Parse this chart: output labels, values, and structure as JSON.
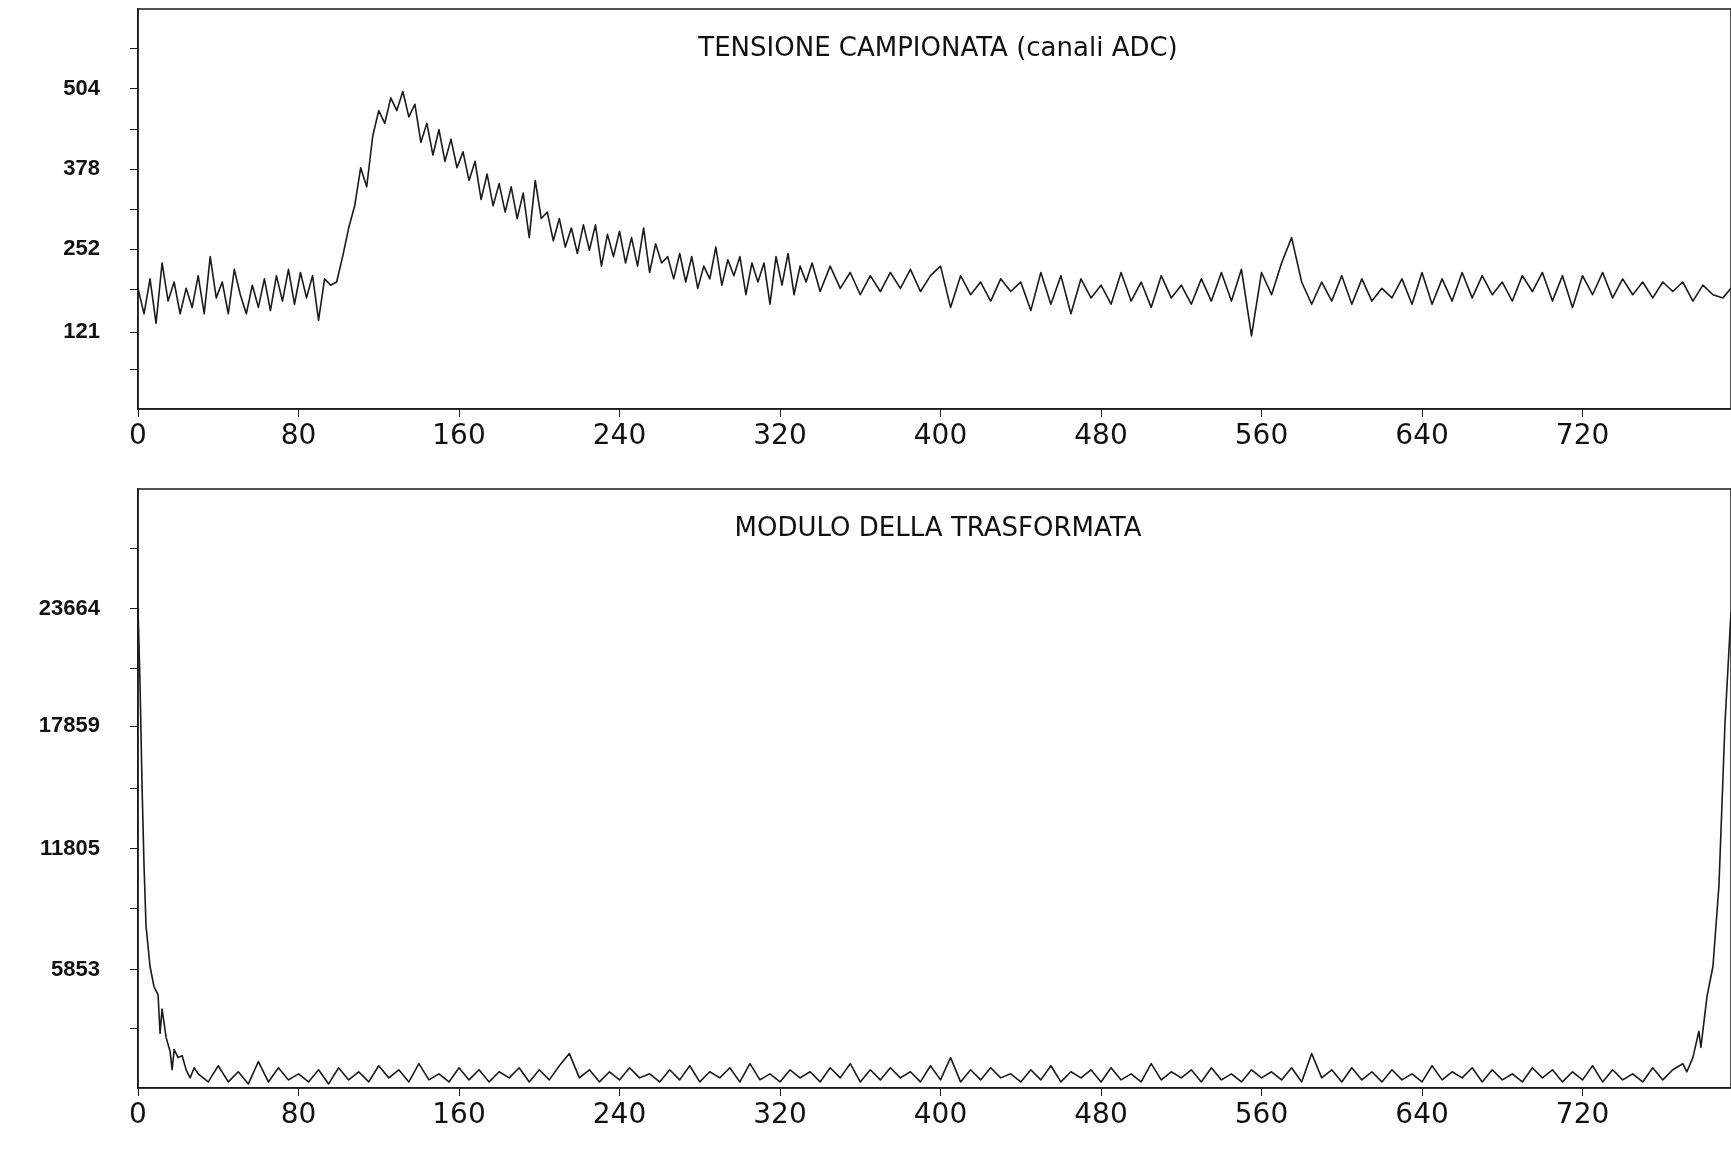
{
  "chart_data": [
    {
      "type": "line",
      "title": "TENSIONE CAMPIONATA (canali ADC)",
      "color": "#1a1a1a",
      "marker": "none",
      "x": [
        0,
        3,
        6,
        9,
        12,
        15,
        18,
        21,
        24,
        27,
        30,
        33,
        36,
        39,
        42,
        45,
        48,
        51,
        54,
        57,
        60,
        63,
        66,
        69,
        72,
        75,
        78,
        81,
        84,
        87,
        90,
        93,
        96,
        99,
        102,
        105,
        108,
        111,
        114,
        117,
        120,
        123,
        126,
        129,
        132,
        135,
        138,
        141,
        144,
        147,
        150,
        153,
        156,
        159,
        162,
        165,
        168,
        171,
        174,
        177,
        180,
        183,
        186,
        189,
        192,
        195,
        198,
        201,
        204,
        207,
        210,
        213,
        216,
        219,
        222,
        225,
        228,
        231,
        234,
        237,
        240,
        243,
        246,
        249,
        252,
        255,
        258,
        261,
        264,
        267,
        270,
        273,
        276,
        279,
        282,
        285,
        288,
        291,
        294,
        297,
        300,
        303,
        306,
        309,
        312,
        315,
        318,
        321,
        324,
        327,
        330,
        333,
        336,
        340,
        345,
        350,
        355,
        360,
        365,
        370,
        375,
        380,
        385,
        390,
        395,
        400,
        405,
        410,
        415,
        420,
        425,
        430,
        435,
        440,
        445,
        450,
        455,
        460,
        465,
        470,
        475,
        480,
        485,
        490,
        495,
        500,
        505,
        510,
        515,
        520,
        525,
        530,
        535,
        540,
        545,
        550,
        555,
        560,
        565,
        570,
        575,
        580,
        585,
        590,
        595,
        600,
        605,
        610,
        615,
        620,
        625,
        630,
        635,
        640,
        645,
        650,
        655,
        660,
        665,
        670,
        675,
        680,
        685,
        690,
        695,
        700,
        705,
        710,
        715,
        720,
        725,
        730,
        735,
        740,
        745,
        750,
        755,
        760,
        765,
        770,
        775,
        780,
        785,
        790,
        794
      ],
      "values": [
        190,
        150,
        205,
        135,
        230,
        170,
        200,
        150,
        190,
        160,
        210,
        150,
        240,
        175,
        200,
        150,
        220,
        180,
        150,
        195,
        160,
        205,
        155,
        210,
        170,
        220,
        165,
        215,
        175,
        210,
        140,
        205,
        195,
        200,
        240,
        285,
        320,
        380,
        350,
        430,
        470,
        450,
        490,
        470,
        500,
        460,
        480,
        420,
        450,
        400,
        440,
        390,
        425,
        380,
        405,
        360,
        390,
        330,
        370,
        320,
        355,
        310,
        350,
        300,
        340,
        270,
        360,
        300,
        310,
        265,
        300,
        255,
        285,
        245,
        290,
        250,
        290,
        225,
        275,
        240,
        280,
        230,
        270,
        225,
        285,
        215,
        260,
        230,
        240,
        205,
        245,
        200,
        240,
        190,
        225,
        205,
        255,
        195,
        235,
        210,
        240,
        180,
        230,
        200,
        230,
        165,
        240,
        195,
        245,
        180,
        225,
        200,
        230,
        185,
        225,
        190,
        215,
        180,
        210,
        185,
        215,
        190,
        220,
        185,
        210,
        225,
        160,
        210,
        180,
        200,
        170,
        205,
        185,
        200,
        155,
        215,
        165,
        210,
        150,
        205,
        175,
        195,
        165,
        215,
        170,
        200,
        160,
        210,
        175,
        195,
        165,
        205,
        170,
        215,
        170,
        220,
        115,
        215,
        180,
        230,
        270,
        200,
        165,
        200,
        170,
        210,
        165,
        205,
        170,
        190,
        175,
        205,
        165,
        215,
        165,
        205,
        170,
        215,
        175,
        210,
        180,
        200,
        170,
        210,
        185,
        215,
        170,
        210,
        160,
        210,
        180,
        215,
        175,
        205,
        180,
        200,
        175,
        200,
        185,
        200,
        170,
        195,
        180,
        175,
        190
      ],
      "xlim": [
        0,
        794
      ],
      "xticks": [
        0,
        80,
        160,
        240,
        320,
        400,
        480,
        560,
        640,
        720
      ],
      "ylim": [
        0,
        630
      ],
      "yticks": [
        {
          "value": 63,
          "label": null
        },
        121,
        {
          "value": 189,
          "label": null
        },
        252,
        {
          "value": 315,
          "label": null
        },
        378,
        {
          "value": 441,
          "label": null
        },
        504,
        {
          "value": 567,
          "label": null
        }
      ]
    },
    {
      "type": "line",
      "title": "MODULO DELLA TRASFORMATA",
      "color": "#1a1a1a",
      "marker": "none",
      "x": [
        0,
        1,
        2,
        3,
        4,
        6,
        8,
        10,
        11,
        12,
        14,
        16,
        17,
        18,
        20,
        22,
        24,
        26,
        28,
        30,
        35,
        40,
        45,
        50,
        55,
        60,
        65,
        70,
        75,
        80,
        85,
        90,
        95,
        100,
        105,
        110,
        115,
        120,
        125,
        130,
        135,
        140,
        145,
        150,
        155,
        160,
        165,
        170,
        175,
        180,
        185,
        190,
        195,
        200,
        205,
        210,
        215,
        220,
        225,
        230,
        235,
        240,
        245,
        250,
        255,
        260,
        265,
        270,
        275,
        280,
        285,
        290,
        295,
        300,
        305,
        310,
        315,
        320,
        325,
        330,
        335,
        340,
        345,
        350,
        355,
        360,
        365,
        370,
        375,
        380,
        385,
        390,
        395,
        400,
        405,
        410,
        415,
        420,
        425,
        430,
        435,
        440,
        445,
        450,
        455,
        460,
        465,
        470,
        475,
        480,
        485,
        490,
        495,
        500,
        505,
        510,
        515,
        520,
        525,
        530,
        535,
        540,
        545,
        550,
        555,
        560,
        565,
        570,
        575,
        580,
        585,
        590,
        595,
        600,
        605,
        610,
        615,
        620,
        625,
        630,
        635,
        640,
        645,
        650,
        655,
        660,
        665,
        670,
        675,
        680,
        685,
        690,
        695,
        700,
        705,
        710,
        715,
        720,
        725,
        730,
        735,
        740,
        745,
        750,
        755,
        760,
        765,
        770,
        772,
        775,
        778,
        779,
        782,
        785,
        788,
        791,
        794
      ],
      "values": [
        23700,
        20000,
        15000,
        11000,
        8000,
        6000,
        5000,
        4600,
        2700,
        3900,
        2500,
        1800,
        900,
        1900,
        1500,
        1600,
        900,
        500,
        1000,
        700,
        300,
        1100,
        300,
        800,
        200,
        1300,
        300,
        1000,
        400,
        700,
        300,
        900,
        200,
        1000,
        400,
        800,
        300,
        1100,
        500,
        900,
        300,
        1200,
        400,
        700,
        300,
        1000,
        400,
        900,
        300,
        800,
        500,
        1000,
        300,
        900,
        400,
        1100,
        1700,
        500,
        900,
        300,
        800,
        400,
        1000,
        500,
        700,
        300,
        900,
        400,
        1100,
        300,
        800,
        500,
        1000,
        300,
        1200,
        400,
        700,
        300,
        900,
        500,
        800,
        300,
        1000,
        500,
        1200,
        300,
        900,
        400,
        1000,
        500,
        800,
        300,
        1100,
        400,
        1500,
        300,
        900,
        400,
        1000,
        500,
        700,
        300,
        900,
        400,
        1100,
        300,
        800,
        500,
        900,
        300,
        1000,
        400,
        700,
        300,
        1200,
        400,
        800,
        500,
        900,
        300,
        1000,
        400,
        700,
        300,
        900,
        500,
        800,
        400,
        1000,
        300,
        1700,
        500,
        900,
        300,
        1000,
        400,
        800,
        300,
        900,
        400,
        700,
        300,
        1100,
        400,
        800,
        500,
        1000,
        300,
        900,
        400,
        700,
        300,
        1000,
        500,
        900,
        300,
        800,
        400,
        1100,
        300,
        900,
        400,
        700,
        300,
        1000,
        400,
        900,
        1200,
        800,
        1500,
        2800,
        2000,
        4500,
        6000,
        10000,
        18000,
        23500
      ],
      "xlim": [
        0,
        794
      ],
      "xticks": [
        0,
        80,
        160,
        240,
        320,
        400,
        480,
        560,
        640,
        720
      ],
      "ylim": [
        0,
        29580
      ],
      "yticks": [
        {
          "value": 2958,
          "label": null
        },
        5853,
        {
          "value": 8874,
          "label": null
        },
        11805,
        {
          "value": 14790,
          "label": null
        },
        17859,
        {
          "value": 20706,
          "label": null
        },
        23664,
        {
          "value": 26622,
          "label": null
        }
      ]
    }
  ]
}
